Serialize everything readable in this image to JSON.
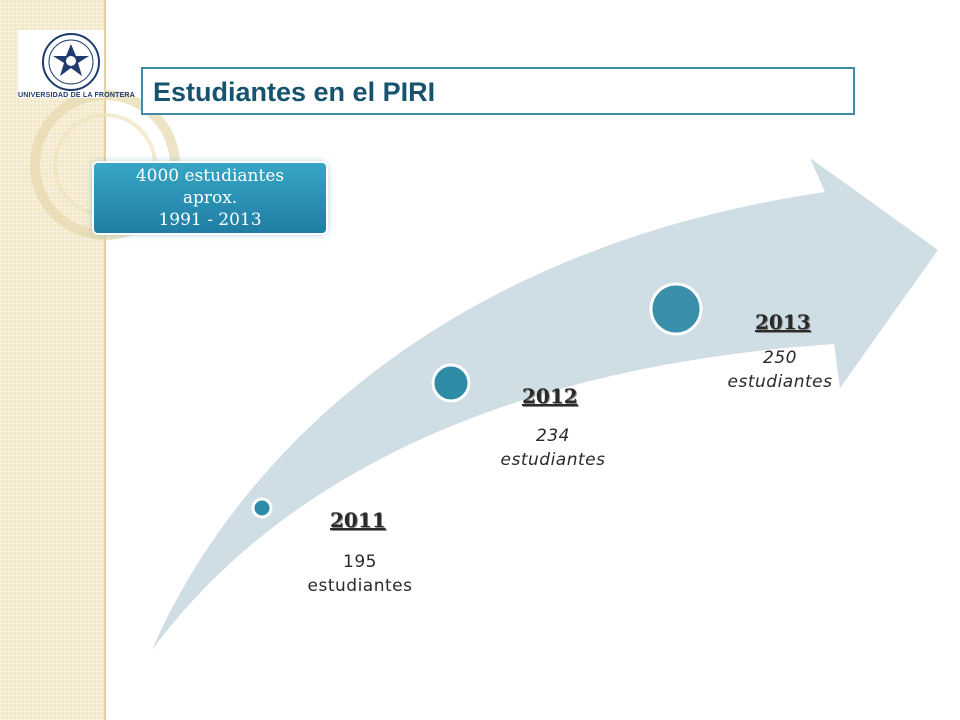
{
  "header": {
    "logo_name": "UNIVERSIDAD DE LA FRONTERA",
    "title": "Estudiantes en el PIRI"
  },
  "badge": {
    "line1": "4000 estudiantes",
    "line2": "aprox.",
    "line3": "1991 - 2013"
  },
  "timeline": [
    {
      "year": "2011",
      "value": "195",
      "unit": "estudiantes"
    },
    {
      "year": "2012",
      "value": "234",
      "unit": "estudiantes"
    },
    {
      "year": "2013",
      "value": "250",
      "unit": "estudiantes"
    }
  ],
  "colors": {
    "arrow_fill": "#cfdde5",
    "marker": "#2f8ca6",
    "title": "#16536f",
    "badge": "#2b93b8",
    "strip": "#f3e8c8"
  }
}
